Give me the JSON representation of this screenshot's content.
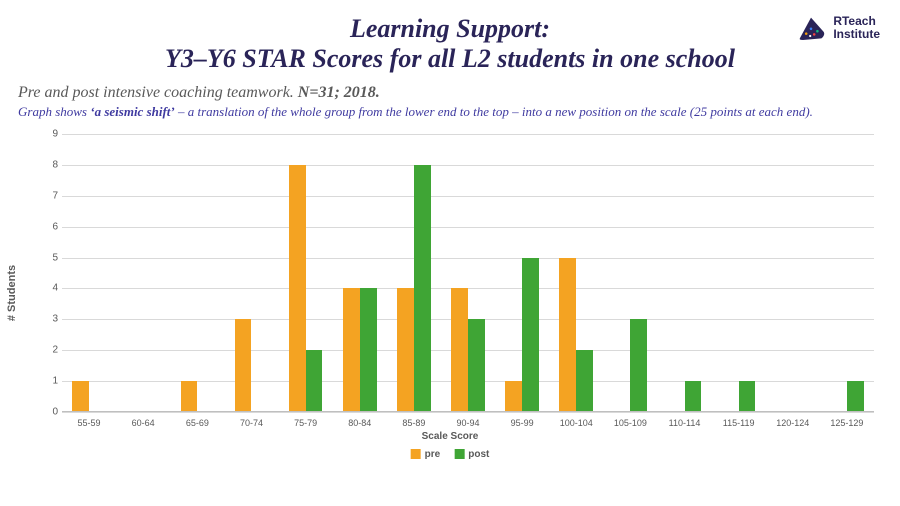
{
  "branding": {
    "name_line1": "RTeach",
    "name_line2": "Institute",
    "text_color": "#2a2458",
    "mark_fill": "#2a2458",
    "dot_colors": [
      "#f59e0b",
      "#3b82f6",
      "#ef4444",
      "#10b981",
      "#ffffff"
    ]
  },
  "title": {
    "line1": "Learning Support:",
    "line2": "Y3–Y6 STAR Scores for all L2 students in one school",
    "color": "#2a2458",
    "fontsize": 26
  },
  "subtitle": {
    "text_prefix": "Pre and post intensive coaching teamwork. ",
    "text_bold": "N=31; 2018.",
    "color": "#595959",
    "fontsize": 16
  },
  "caption": {
    "prefix": "Graph shows ",
    "bold": "‘a seismic shift’",
    "suffix": " – a translation of the whole group from the lower end to the top – into a new position on the scale (25 points at each end).",
    "color": "#3f3aa0",
    "fontsize": 13
  },
  "chart": {
    "type": "bar",
    "ylabel": "# Students",
    "xlabel": "Scale Score",
    "ylim": [
      0,
      9
    ],
    "ytick_step": 1,
    "categories": [
      "55-59",
      "60-64",
      "65-69",
      "70-74",
      "75-79",
      "80-84",
      "85-89",
      "90-94",
      "95-99",
      "100-104",
      "105-109",
      "110-114",
      "115-119",
      "120-124",
      "125-129"
    ],
    "series": [
      {
        "name": "pre",
        "color": "#f4a322",
        "values": [
          1,
          0,
          1,
          3,
          8,
          4,
          4,
          4,
          1,
          5,
          0,
          0,
          0,
          0,
          0
        ]
      },
      {
        "name": "post",
        "color": "#3fa535",
        "values": [
          0,
          0,
          0,
          0,
          2,
          4,
          8,
          3,
          5,
          2,
          3,
          1,
          1,
          0,
          1
        ]
      }
    ],
    "bar_group_width": 0.62,
    "grid_color": "#d9d9d9",
    "axis_color": "#bfbfbf",
    "tick_fontsize": 10,
    "label_fontsize": 10,
    "background_color": "#ffffff",
    "legend": {
      "position": "bottom-center"
    }
  }
}
